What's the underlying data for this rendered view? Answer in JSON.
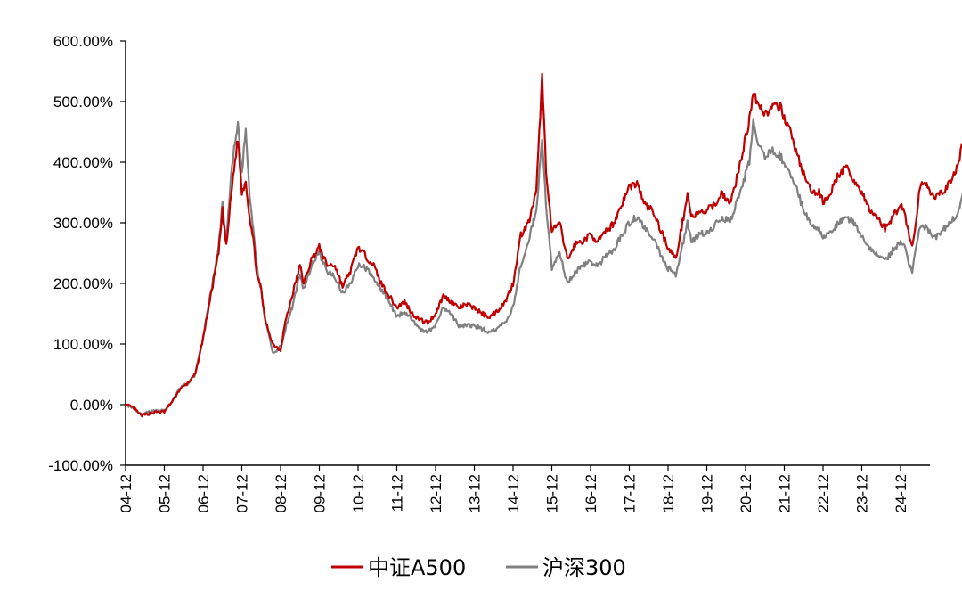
{
  "chart_data": {
    "type": "line",
    "title": "",
    "xlabel": "",
    "ylabel": "",
    "ylim": [
      -100,
      600
    ],
    "y_ticks": [
      "600.00%",
      "500.00%",
      "400.00%",
      "300.00%",
      "200.00%",
      "100.00%",
      "0.00%",
      "-100.00%"
    ],
    "x_ticks": [
      "04-12",
      "05-12",
      "06-12",
      "07-12",
      "08-12",
      "09-12",
      "10-12",
      "11-12",
      "12-12",
      "13-12",
      "14-12",
      "15-12",
      "16-12",
      "17-12",
      "18-12",
      "19-12",
      "20-12",
      "21-12",
      "22-12",
      "23-12",
      "24-12"
    ],
    "grid": false,
    "legend_position": "bottom-center",
    "series": [
      {
        "name": "中证A500",
        "color": "#c00000",
        "points": [
          [
            0,
            0
          ],
          [
            0.2,
            -5
          ],
          [
            0.4,
            -18
          ],
          [
            0.6,
            -15
          ],
          [
            0.8,
            -12
          ],
          [
            1.0,
            -12
          ],
          [
            1.2,
            5
          ],
          [
            1.4,
            25
          ],
          [
            1.6,
            35
          ],
          [
            1.8,
            50
          ],
          [
            2.0,
            110
          ],
          [
            2.2,
            180
          ],
          [
            2.4,
            250
          ],
          [
            2.5,
            320
          ],
          [
            2.6,
            260
          ],
          [
            2.7,
            330
          ],
          [
            2.8,
            390
          ],
          [
            2.9,
            440
          ],
          [
            3.0,
            350
          ],
          [
            3.1,
            370
          ],
          [
            3.2,
            310
          ],
          [
            3.3,
            270
          ],
          [
            3.4,
            210
          ],
          [
            3.5,
            190
          ],
          [
            3.6,
            140
          ],
          [
            3.8,
            100
          ],
          [
            4.0,
            90
          ],
          [
            4.1,
            130
          ],
          [
            4.3,
            180
          ],
          [
            4.5,
            230
          ],
          [
            4.6,
            200
          ],
          [
            4.8,
            240
          ],
          [
            5.0,
            260
          ],
          [
            5.2,
            230
          ],
          [
            5.4,
            230
          ],
          [
            5.6,
            195
          ],
          [
            5.8,
            220
          ],
          [
            6.0,
            260
          ],
          [
            6.2,
            245
          ],
          [
            6.4,
            230
          ],
          [
            6.6,
            200
          ],
          [
            6.8,
            180
          ],
          [
            7.0,
            160
          ],
          [
            7.2,
            170
          ],
          [
            7.4,
            150
          ],
          [
            7.6,
            140
          ],
          [
            7.8,
            135
          ],
          [
            8.0,
            150
          ],
          [
            8.2,
            180
          ],
          [
            8.4,
            170
          ],
          [
            8.6,
            160
          ],
          [
            8.8,
            165
          ],
          [
            9.0,
            160
          ],
          [
            9.2,
            150
          ],
          [
            9.4,
            145
          ],
          [
            9.6,
            155
          ],
          [
            9.8,
            170
          ],
          [
            10.0,
            200
          ],
          [
            10.2,
            280
          ],
          [
            10.4,
            300
          ],
          [
            10.6,
            350
          ],
          [
            10.7,
            480
          ],
          [
            10.75,
            540
          ],
          [
            10.85,
            390
          ],
          [
            11.0,
            285
          ],
          [
            11.2,
            300
          ],
          [
            11.4,
            240
          ],
          [
            11.5,
            250
          ],
          [
            11.6,
            265
          ],
          [
            11.8,
            270
          ],
          [
            12.0,
            280
          ],
          [
            12.2,
            270
          ],
          [
            12.4,
            285
          ],
          [
            12.6,
            300
          ],
          [
            12.8,
            330
          ],
          [
            13.0,
            360
          ],
          [
            13.2,
            365
          ],
          [
            13.4,
            330
          ],
          [
            13.6,
            320
          ],
          [
            13.8,
            290
          ],
          [
            14.0,
            260
          ],
          [
            14.2,
            240
          ],
          [
            14.4,
            310
          ],
          [
            14.5,
            350
          ],
          [
            14.6,
            310
          ],
          [
            14.8,
            315
          ],
          [
            15.0,
            320
          ],
          [
            15.2,
            330
          ],
          [
            15.4,
            350
          ],
          [
            15.6,
            330
          ],
          [
            15.8,
            380
          ],
          [
            16.0,
            440
          ],
          [
            16.1,
            470
          ],
          [
            16.2,
            520
          ],
          [
            16.3,
            500
          ],
          [
            16.5,
            480
          ],
          [
            16.7,
            490
          ],
          [
            16.9,
            490
          ],
          [
            17.1,
            460
          ],
          [
            17.3,
            420
          ],
          [
            17.5,
            380
          ],
          [
            17.7,
            350
          ],
          [
            17.9,
            350
          ],
          [
            18.0,
            335
          ],
          [
            18.2,
            350
          ],
          [
            18.4,
            380
          ],
          [
            18.6,
            390
          ],
          [
            18.8,
            370
          ],
          [
            19.0,
            350
          ],
          [
            19.2,
            320
          ],
          [
            19.4,
            310
          ],
          [
            19.6,
            290
          ],
          [
            19.8,
            310
          ],
          [
            20.0,
            330
          ],
          [
            20.1,
            320
          ],
          [
            20.2,
            285
          ],
          [
            20.3,
            260
          ],
          [
            20.4,
            300
          ],
          [
            20.5,
            360
          ],
          [
            20.6,
            370
          ],
          [
            20.7,
            360
          ],
          [
            20.8,
            350
          ],
          [
            20.9,
            340
          ],
          [
            21.0,
            345
          ],
          [
            21.2,
            360
          ],
          [
            21.4,
            380
          ],
          [
            21.5,
            400
          ],
          [
            21.6,
            430
          ],
          [
            21.7,
            460
          ]
        ]
      },
      {
        "name": "沪深300",
        "color": "#808080",
        "points": [
          [
            0,
            0
          ],
          [
            0.2,
            -5
          ],
          [
            0.4,
            -15
          ],
          [
            0.6,
            -12
          ],
          [
            0.8,
            -10
          ],
          [
            1.0,
            -10
          ],
          [
            1.2,
            5
          ],
          [
            1.4,
            28
          ],
          [
            1.6,
            35
          ],
          [
            1.8,
            50
          ],
          [
            2.0,
            110
          ],
          [
            2.2,
            185
          ],
          [
            2.4,
            260
          ],
          [
            2.5,
            330
          ],
          [
            2.6,
            270
          ],
          [
            2.7,
            360
          ],
          [
            2.8,
            420
          ],
          [
            2.9,
            470
          ],
          [
            3.0,
            380
          ],
          [
            3.1,
            460
          ],
          [
            3.2,
            340
          ],
          [
            3.3,
            290
          ],
          [
            3.4,
            220
          ],
          [
            3.5,
            190
          ],
          [
            3.6,
            140
          ],
          [
            3.8,
            85
          ],
          [
            4.0,
            95
          ],
          [
            4.1,
            120
          ],
          [
            4.3,
            160
          ],
          [
            4.5,
            215
          ],
          [
            4.6,
            190
          ],
          [
            4.8,
            230
          ],
          [
            5.0,
            250
          ],
          [
            5.2,
            220
          ],
          [
            5.4,
            210
          ],
          [
            5.6,
            185
          ],
          [
            5.8,
            200
          ],
          [
            6.0,
            230
          ],
          [
            6.2,
            225
          ],
          [
            6.4,
            210
          ],
          [
            6.6,
            190
          ],
          [
            6.8,
            170
          ],
          [
            7.0,
            145
          ],
          [
            7.2,
            155
          ],
          [
            7.4,
            140
          ],
          [
            7.6,
            125
          ],
          [
            7.8,
            120
          ],
          [
            8.0,
            130
          ],
          [
            8.2,
            160
          ],
          [
            8.4,
            150
          ],
          [
            8.6,
            130
          ],
          [
            8.8,
            130
          ],
          [
            9.0,
            130
          ],
          [
            9.2,
            125
          ],
          [
            9.4,
            120
          ],
          [
            9.6,
            125
          ],
          [
            9.8,
            135
          ],
          [
            10.0,
            160
          ],
          [
            10.2,
            230
          ],
          [
            10.4,
            270
          ],
          [
            10.6,
            320
          ],
          [
            10.7,
            400
          ],
          [
            10.75,
            430
          ],
          [
            10.85,
            330
          ],
          [
            11.0,
            225
          ],
          [
            11.2,
            250
          ],
          [
            11.4,
            200
          ],
          [
            11.5,
            210
          ],
          [
            11.6,
            220
          ],
          [
            11.8,
            230
          ],
          [
            12.0,
            235
          ],
          [
            12.2,
            230
          ],
          [
            12.4,
            245
          ],
          [
            12.6,
            255
          ],
          [
            12.8,
            280
          ],
          [
            13.0,
            300
          ],
          [
            13.2,
            310
          ],
          [
            13.4,
            290
          ],
          [
            13.6,
            275
          ],
          [
            13.8,
            250
          ],
          [
            14.0,
            225
          ],
          [
            14.2,
            215
          ],
          [
            14.4,
            270
          ],
          [
            14.5,
            300
          ],
          [
            14.6,
            270
          ],
          [
            14.8,
            280
          ],
          [
            15.0,
            285
          ],
          [
            15.2,
            295
          ],
          [
            15.4,
            310
          ],
          [
            15.6,
            300
          ],
          [
            15.8,
            340
          ],
          [
            16.0,
            380
          ],
          [
            16.1,
            400
          ],
          [
            16.2,
            465
          ],
          [
            16.3,
            430
          ],
          [
            16.5,
            410
          ],
          [
            16.7,
            420
          ],
          [
            16.9,
            410
          ],
          [
            17.1,
            390
          ],
          [
            17.3,
            360
          ],
          [
            17.5,
            320
          ],
          [
            17.7,
            300
          ],
          [
            17.9,
            290
          ],
          [
            18.0,
            275
          ],
          [
            18.2,
            285
          ],
          [
            18.4,
            300
          ],
          [
            18.6,
            310
          ],
          [
            18.8,
            300
          ],
          [
            19.0,
            280
          ],
          [
            19.2,
            260
          ],
          [
            19.4,
            250
          ],
          [
            19.6,
            235
          ],
          [
            19.8,
            255
          ],
          [
            20.0,
            270
          ],
          [
            20.1,
            260
          ],
          [
            20.2,
            235
          ],
          [
            20.3,
            220
          ],
          [
            20.4,
            260
          ],
          [
            20.5,
            290
          ],
          [
            20.6,
            295
          ],
          [
            20.7,
            290
          ],
          [
            20.8,
            280
          ],
          [
            20.9,
            275
          ],
          [
            21.0,
            280
          ],
          [
            21.2,
            295
          ],
          [
            21.4,
            310
          ],
          [
            21.5,
            320
          ],
          [
            21.6,
            345
          ],
          [
            21.7,
            362
          ]
        ]
      }
    ]
  },
  "legend": {
    "items": [
      {
        "label": "中证A500",
        "color": "#c00000"
      },
      {
        "label": "沪深300",
        "color": "#808080"
      }
    ]
  }
}
